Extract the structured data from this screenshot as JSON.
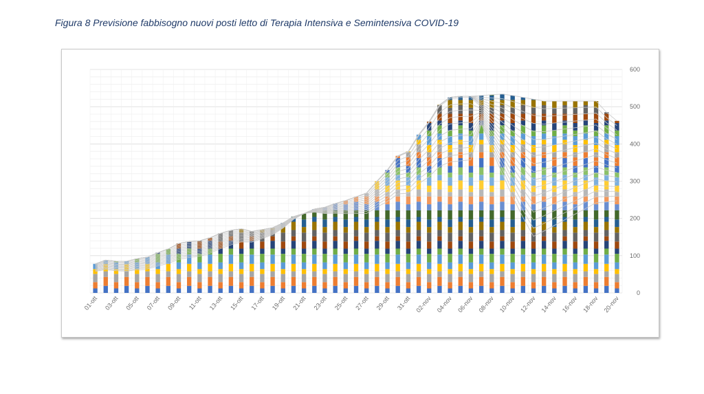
{
  "caption": "Figura 8 Previsione fabbisogno nuovi posti letto di Terapia Intensiva e Semintensiva COVID-19",
  "chart_data": {
    "type": "bar",
    "stacked": true,
    "title": "",
    "xlabel": "",
    "ylabel": "",
    "ylim": [
      0,
      600
    ],
    "y_axis_position": "right",
    "yticks": [
      0,
      100,
      200,
      300,
      400,
      500,
      600
    ],
    "grid": true,
    "legend": "none",
    "categories": [
      "01-ott",
      "02-ott",
      "03-ott",
      "04-ott",
      "05-ott",
      "06-ott",
      "07-ott",
      "08-ott",
      "09-ott",
      "10-ott",
      "11-ott",
      "12-ott",
      "13-ott",
      "14-ott",
      "15-ott",
      "16-ott",
      "17-ott",
      "18-ott",
      "19-ott",
      "20-ott",
      "21-ott",
      "22-ott",
      "23-ott",
      "24-ott",
      "25-ott",
      "26-ott",
      "27-ott",
      "28-ott",
      "29-ott",
      "30-ott",
      "31-ott",
      "01-nov",
      "02-nov",
      "03-nov",
      "04-nov",
      "05-nov",
      "06-nov",
      "07-nov",
      "08-nov",
      "09-nov",
      "10-nov",
      "11-nov",
      "12-nov",
      "13-nov",
      "14-nov",
      "15-nov",
      "16-nov",
      "17-nov",
      "18-nov",
      "19-nov",
      "20-nov"
    ],
    "xtick_labels": [
      "01-ott",
      "03-ott",
      "05-ott",
      "07-ott",
      "09-ott",
      "11-ott",
      "13-ott",
      "15-ott",
      "17-ott",
      "19-ott",
      "21-ott",
      "23-ott",
      "25-ott",
      "27-ott",
      "29-ott",
      "31-ott",
      "02-nov",
      "04-nov",
      "06-nov",
      "08-nov",
      "10-nov",
      "12-nov",
      "14-nov",
      "16-nov",
      "18-nov",
      "20-nov"
    ],
    "totals": [
      78,
      88,
      85,
      85,
      92,
      96,
      108,
      118,
      133,
      138,
      140,
      148,
      160,
      168,
      172,
      165,
      170,
      175,
      188,
      205,
      213,
      225,
      230,
      240,
      248,
      258,
      268,
      300,
      330,
      368,
      380,
      425,
      460,
      505,
      525,
      528,
      528,
      530,
      532,
      534,
      530,
      525,
      520,
      515,
      515,
      515,
      515,
      515,
      515,
      485,
      462
    ],
    "series_colors": [
      "#4472c4",
      "#ed7d31",
      "#a5a5a5",
      "#ffc000",
      "#5b9bd5",
      "#70ad47",
      "#264478",
      "#9e480e",
      "#636363",
      "#997300",
      "#255e91",
      "#43682b",
      "#698ed0",
      "#f1975a",
      "#b7b7b7",
      "#ffcd33",
      "#7cafdd",
      "#8cc168"
    ],
    "trend_lines": {
      "count": 18,
      "color": "#c9c9c9",
      "note": ""
    }
  }
}
